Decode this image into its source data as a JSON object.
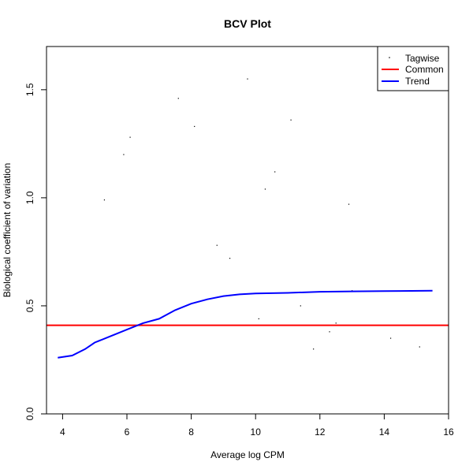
{
  "chart_data": {
    "type": "scatter",
    "title": "BCV Plot",
    "xlabel": "Average log CPM",
    "ylabel": "Biological coefficient of variation",
    "xlim": [
      3.5,
      16
    ],
    "ylim": [
      0,
      1.7
    ],
    "x_ticks": [
      "4",
      "6",
      "8",
      "10",
      "12",
      "14",
      "16"
    ],
    "y_ticks": [
      "0.0",
      "0.5",
      "1.0",
      "1.5"
    ],
    "legend_position": "top-right",
    "grid": false,
    "legend": [
      "Tagwise",
      "Common",
      "Trend"
    ],
    "colors": {
      "tagwise": "#000000",
      "common": "#ff0000",
      "trend": "#0000ff"
    },
    "common": 0.41,
    "trend": {
      "x": [
        3.85,
        4.3,
        4.7,
        5.0,
        5.5,
        6.0,
        6.5,
        7.0,
        7.5,
        8.0,
        8.5,
        9.0,
        9.5,
        10.0,
        11.0,
        12.0,
        13.0,
        14.0,
        15.5
      ],
      "y": [
        0.26,
        0.27,
        0.3,
        0.33,
        0.36,
        0.39,
        0.42,
        0.44,
        0.48,
        0.51,
        0.53,
        0.545,
        0.553,
        0.557,
        0.56,
        0.565,
        0.567,
        0.568,
        0.57
      ]
    },
    "tagwise": {
      "x": [
        5.3,
        9.75,
        11.1,
        8.1,
        7.6,
        10.6,
        10.3,
        12.9,
        11.4,
        13.0,
        12.3,
        15.1,
        14.2,
        9.2,
        8.8,
        10.1,
        11.8,
        12.5,
        6.1,
        5.9
      ],
      "y": [
        0.99,
        1.55,
        1.36,
        1.33,
        1.46,
        1.12,
        1.04,
        0.97,
        0.5,
        0.57,
        0.38,
        0.31,
        0.35,
        0.72,
        0.78,
        0.44,
        0.3,
        0.42,
        1.28,
        1.2
      ]
    }
  }
}
